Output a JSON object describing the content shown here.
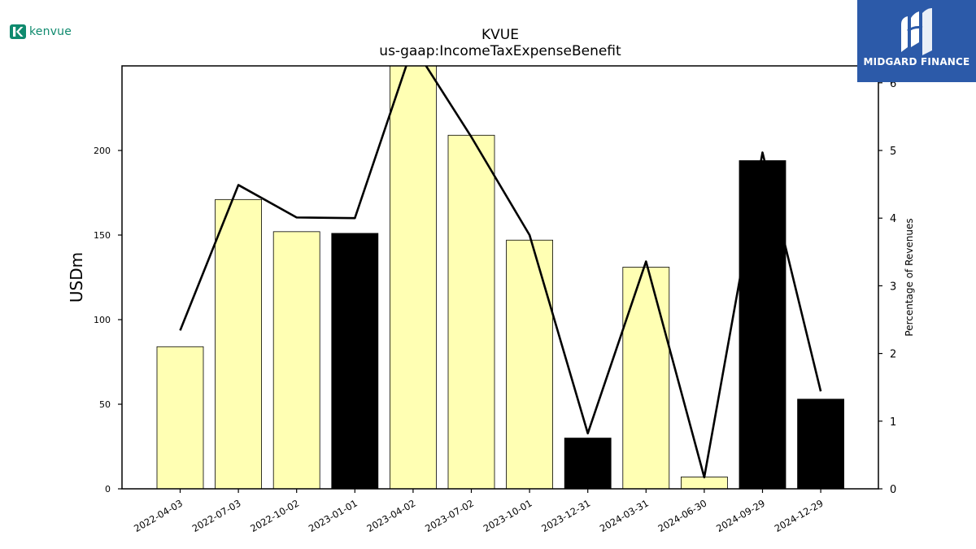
{
  "logos": {
    "left_text": "kenvue",
    "right_text": "MIDGARD FINANCE"
  },
  "chart_data": {
    "type": "bar",
    "title": "KVUE",
    "subtitle": "us-gaap:IncomeTaxExpenseBenefit",
    "ylabel": "USDm",
    "y2label": "Percentage of Revenues",
    "categories": [
      "2022-04-03",
      "2022-07-03",
      "2022-10-02",
      "2023-01-01",
      "2023-04-02",
      "2023-07-02",
      "2023-10-01",
      "2023-12-31",
      "2024-03-31",
      "2024-06-30",
      "2024-09-29",
      "2024-12-29"
    ],
    "values": [
      84,
      171,
      152,
      151,
      250,
      209,
      147,
      30,
      131,
      7,
      194,
      53
    ],
    "highlighted": [
      false,
      false,
      false,
      true,
      false,
      false,
      false,
      true,
      false,
      false,
      true,
      true
    ],
    "bar_color": "#ffffb3",
    "highlight_color": "#000000",
    "ylim": [
      0,
      250
    ],
    "yticks": [
      "0",
      "50",
      "100",
      "150",
      "200"
    ],
    "y2ticks": [
      "0",
      "1",
      "2",
      "3",
      "4",
      "5",
      "6"
    ],
    "series": [
      {
        "name": "Percentage of Revenues",
        "axis": "right",
        "type": "line",
        "values": [
          2.34,
          4.49,
          4.01,
          4.0,
          6.55,
          5.2,
          3.75,
          0.82,
          3.36,
          0.17,
          4.97,
          1.44
        ]
      }
    ],
    "y2lim": [
      0,
      6.25
    ],
    "grid": false
  }
}
